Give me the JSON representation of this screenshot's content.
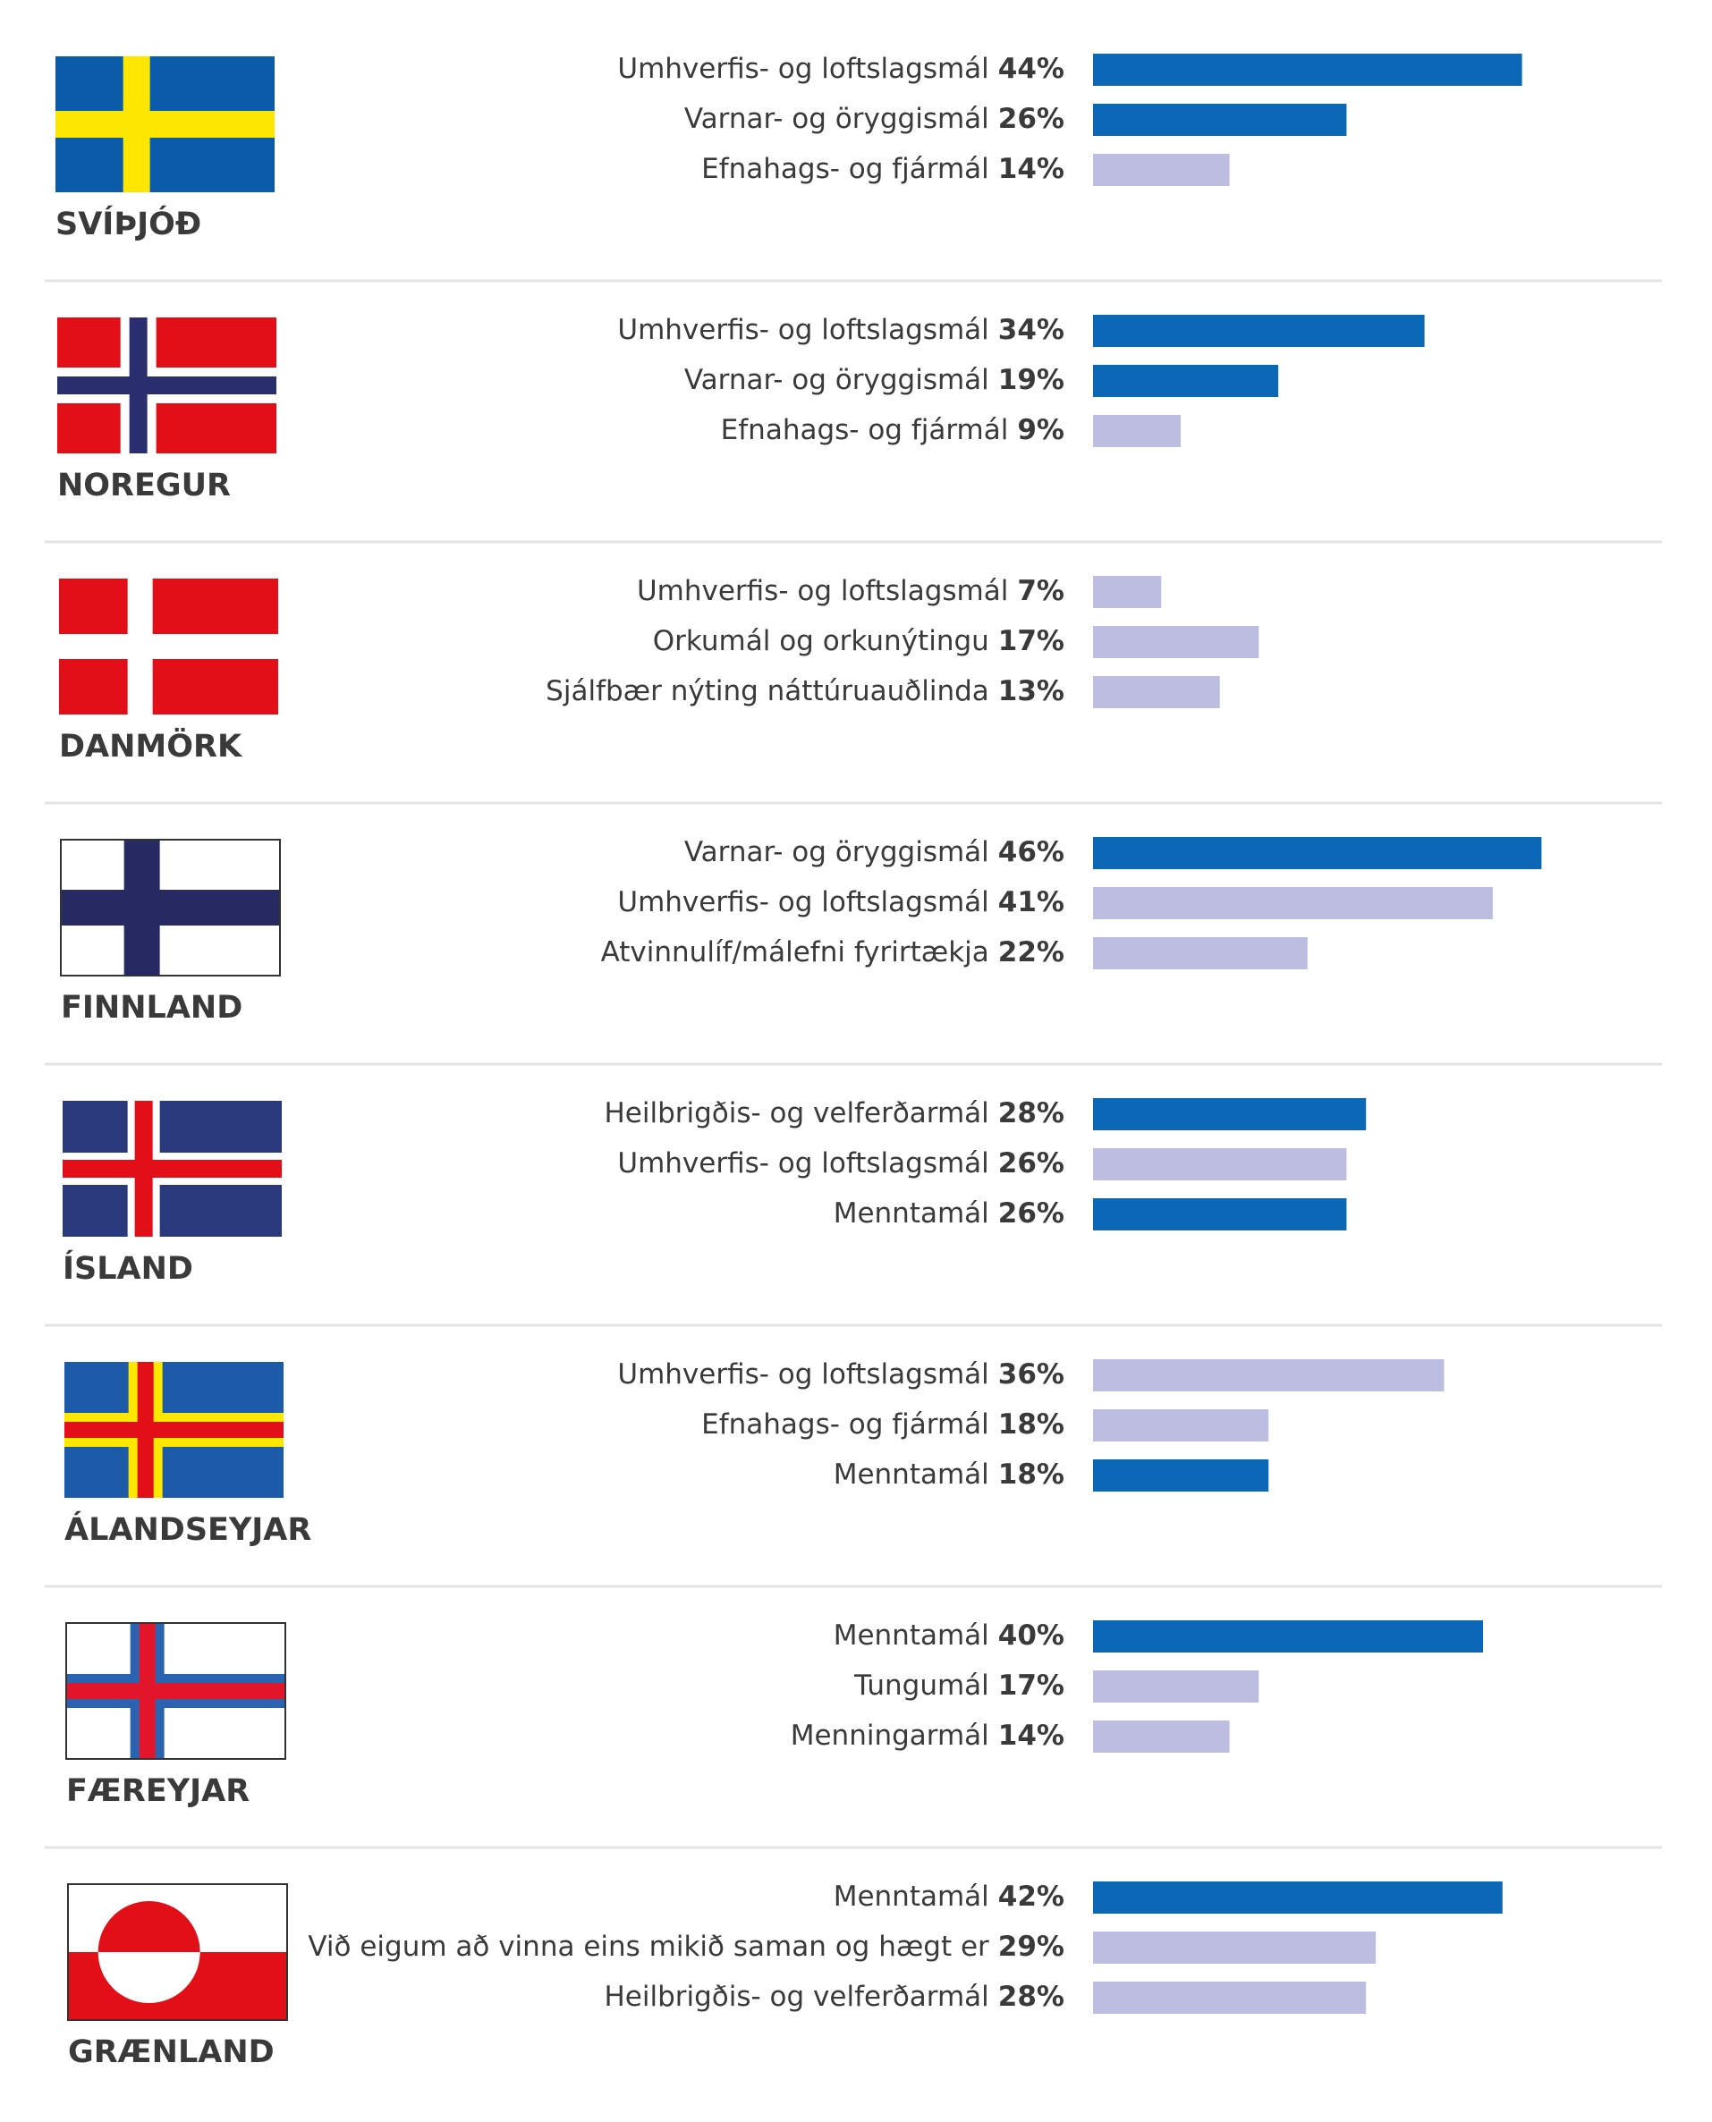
{
  "chart_data": [
    {
      "type": "bar",
      "title": "SVÍÞJÓÐ",
      "categories": [
        "Umhverfis- og loftslagsmál",
        "Varnar- og öryggismál",
        "Efnahags- og fjármál"
      ],
      "values": [
        44,
        26,
        14
      ],
      "value_labels": [
        "44%",
        "26%",
        "14%"
      ],
      "colors": [
        "#0b68b6",
        "#0b68b6",
        "#bdbce1"
      ]
    },
    {
      "type": "bar",
      "title": "NOREGUR",
      "categories": [
        "Umhverfis- og loftslagsmál",
        "Varnar- og öryggismál",
        "Efnahags- og fjármál"
      ],
      "values": [
        34,
        19,
        9
      ],
      "value_labels": [
        "34%",
        "19%",
        "9%"
      ],
      "colors": [
        "#0b68b6",
        "#0b68b6",
        "#bdbce1"
      ]
    },
    {
      "type": "bar",
      "title": "DANMÖRK",
      "categories": [
        "Umhverfis- og loftslagsmál",
        "Orkumál og orkunýtingu",
        "Sjálfbær nýting náttúruauðlinda"
      ],
      "values": [
        7,
        17,
        13
      ],
      "value_labels": [
        "7%",
        "17%",
        "13%"
      ],
      "colors": [
        "#bdbce1",
        "#bdbce1",
        "#bdbce1"
      ]
    },
    {
      "type": "bar",
      "title": "FINNLAND",
      "categories": [
        "Varnar- og öryggismál",
        "Umhverfis- og loftslagsmál",
        "Atvinnulíf/málefni fyrirtækja"
      ],
      "values": [
        46,
        41,
        22
      ],
      "value_labels": [
        "46%",
        "41%",
        "22%"
      ],
      "colors": [
        "#0b68b6",
        "#bdbce1",
        "#bdbce1"
      ]
    },
    {
      "type": "bar",
      "title": "ÍSLAND",
      "categories": [
        "Heilbrigðis- og velferðarmál",
        "Umhverfis- og loftslagsmál",
        "Menntamál"
      ],
      "values": [
        28,
        26,
        26
      ],
      "value_labels": [
        "28%",
        "26%",
        "26%"
      ],
      "colors": [
        "#0b68b6",
        "#bdbce1",
        "#0b68b6"
      ]
    },
    {
      "type": "bar",
      "title": "ÁLANDSEYJAR",
      "categories": [
        "Umhverfis- og loftslagsmál",
        "Efnahags- og fjármál",
        "Menntamál"
      ],
      "values": [
        36,
        18,
        18
      ],
      "value_labels": [
        "36%",
        "18%",
        "18%"
      ],
      "colors": [
        "#bdbce1",
        "#bdbce1",
        "#0b68b6"
      ]
    },
    {
      "type": "bar",
      "title": "FÆREYJAR",
      "categories": [
        "Menntamál",
        "Tungumál",
        "Menningarmál"
      ],
      "values": [
        40,
        17,
        14
      ],
      "value_labels": [
        "40%",
        "17%",
        "14%"
      ],
      "colors": [
        "#0b68b6",
        "#bdbce1",
        "#bdbce1"
      ]
    },
    {
      "type": "bar",
      "title": "GRÆNLAND",
      "categories": [
        "Menntamál",
        "Við eigum að vinna eins mikið saman og hægt er",
        "Heilbrigðis- og velferðarmál"
      ],
      "values": [
        42,
        29,
        28
      ],
      "value_labels": [
        "42%",
        "29%",
        "28%"
      ],
      "colors": [
        "#0b68b6",
        "#bdbce1",
        "#bdbce1"
      ]
    }
  ]
}
